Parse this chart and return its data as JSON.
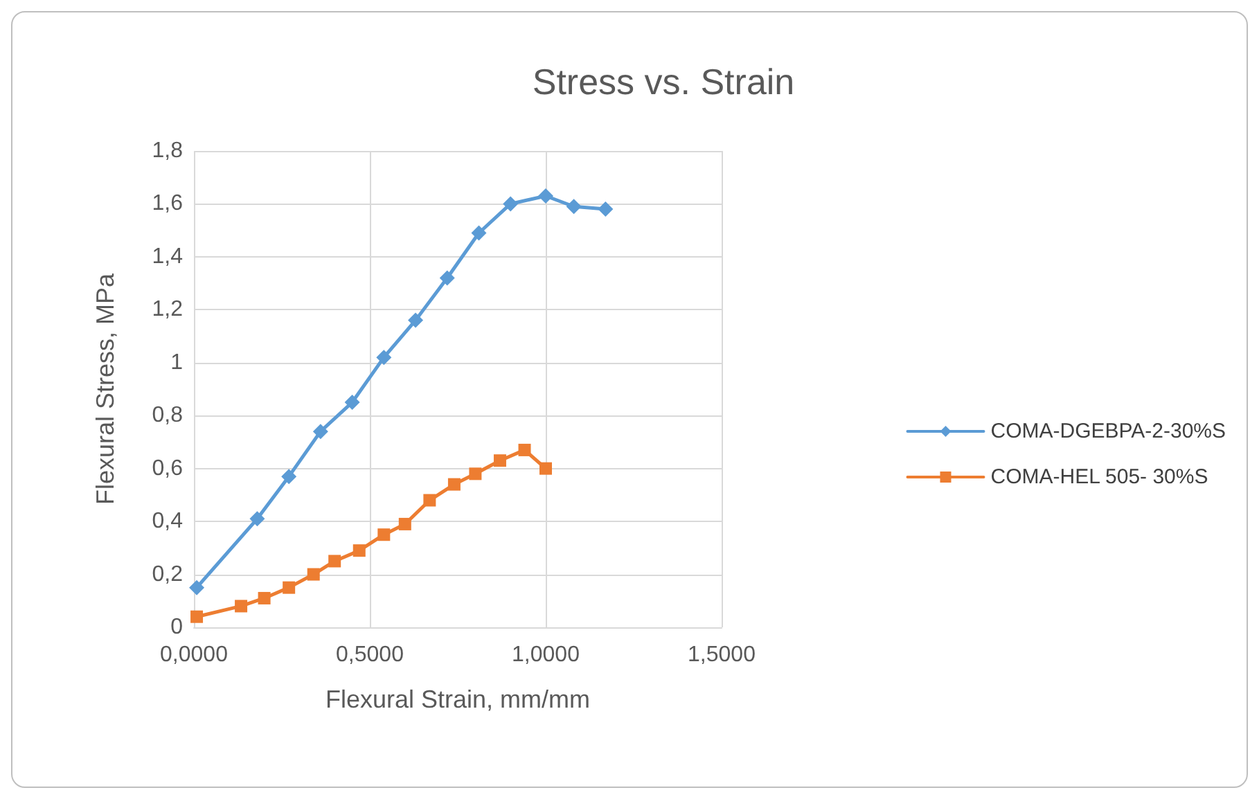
{
  "chart_data": {
    "type": "line",
    "title": "Stress vs. Strain",
    "xlabel": "Flexural Strain, mm/mm",
    "ylabel": "Flexural Stress, MPa",
    "xlim": [
      0,
      1.5
    ],
    "xticks": [
      {
        "value": 0,
        "label": "0,0000"
      },
      {
        "value": 0.5,
        "label": "0,5000"
      },
      {
        "value": 1,
        "label": "1,0000"
      },
      {
        "value": 1.5,
        "label": "1,5000"
      }
    ],
    "ylim": [
      0,
      1.8
    ],
    "yticks": [
      0,
      {
        "value": 0.2,
        "label": "0,2"
      },
      {
        "value": 0.4,
        "label": "0,4"
      },
      {
        "value": 0.6,
        "label": "0,6"
      },
      {
        "value": 0.8,
        "label": "0,8"
      },
      1,
      {
        "value": 1.2,
        "label": "1,2"
      },
      {
        "value": 1.4,
        "label": "1,4"
      },
      {
        "value": 1.6,
        "label": "1,6"
      },
      {
        "value": 1.8,
        "label": "1,8"
      }
    ],
    "grid": true,
    "legend": "right",
    "line_style": "solid",
    "series": [
      {
        "name": "COMA-DGEBPA-2-30%S",
        "color": "#5b9bd5",
        "marker": "diamond",
        "x": [
          0.008,
          0.18,
          0.27,
          0.36,
          0.45,
          0.54,
          0.63,
          0.72,
          0.81,
          0.9,
          1.0,
          1.08,
          1.17
        ],
        "values": [
          0.15,
          0.41,
          0.57,
          0.74,
          0.85,
          1.02,
          1.16,
          1.32,
          1.49,
          1.6,
          1.63,
          1.59,
          1.58
        ]
      },
      {
        "name": "COMA-HEL 505- 30%S",
        "color": "#ed7d31",
        "marker": "square",
        "x": [
          0.008,
          0.134,
          0.2,
          0.27,
          0.34,
          0.4,
          0.47,
          0.54,
          0.6,
          0.67,
          0.74,
          0.8,
          0.87,
          0.94,
          1.0
        ],
        "values": [
          0.04,
          0.08,
          0.11,
          0.15,
          0.2,
          0.25,
          0.29,
          0.35,
          0.39,
          0.48,
          0.54,
          0.58,
          0.63,
          0.67,
          0.6
        ]
      }
    ]
  }
}
